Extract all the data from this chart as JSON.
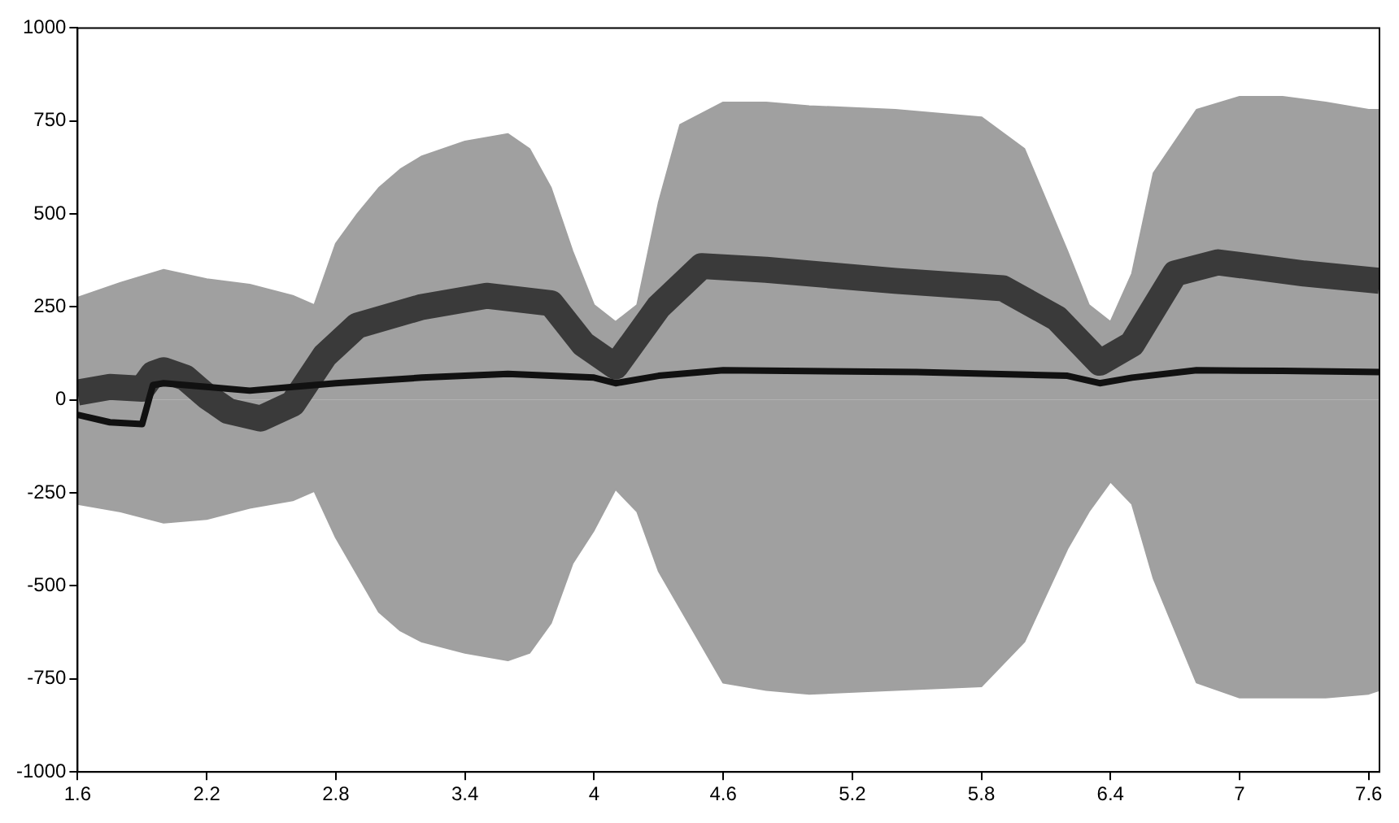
{
  "chart_data": {
    "type": "line",
    "xlim": [
      1.6,
      7.65
    ],
    "xticks": [
      1.6,
      2.2,
      2.8,
      3.4,
      4,
      4.6,
      5.2,
      5.8,
      6.4,
      7,
      7.6
    ],
    "ylim": [
      -1000,
      1000
    ],
    "yticks": [
      -1000,
      -750,
      -500,
      -250,
      0,
      250,
      500,
      750,
      1000
    ],
    "grid": false,
    "legend": false,
    "marker": "none",
    "series": [
      {
        "type": "area",
        "color": "#a0a0a0",
        "x": [
          1.6,
          1.8,
          2.0,
          2.2,
          2.4,
          2.6,
          2.7,
          2.8,
          2.9,
          3.0,
          3.1,
          3.2,
          3.4,
          3.6,
          3.7,
          3.8,
          3.9,
          4.0,
          4.1,
          4.2,
          4.3,
          4.4,
          4.6,
          4.8,
          5.0,
          5.4,
          5.8,
          6.0,
          6.2,
          6.3,
          6.4,
          6.5,
          6.6,
          6.8,
          7.0,
          7.2,
          7.4,
          7.6,
          7.65
        ],
        "values": [
          275,
          315,
          350,
          325,
          310,
          280,
          255,
          420,
          500,
          570,
          620,
          655,
          695,
          715,
          675,
          570,
          400,
          255,
          210,
          255,
          530,
          740,
          800,
          800,
          790,
          780,
          760,
          675,
          400,
          255,
          210,
          340,
          610,
          780,
          815,
          815,
          800,
          780,
          780
        ]
      },
      {
        "type": "area",
        "color": "#a0a0a0",
        "x": [
          1.6,
          1.8,
          2.0,
          2.2,
          2.4,
          2.6,
          2.7,
          2.8,
          2.9,
          3.0,
          3.1,
          3.2,
          3.4,
          3.6,
          3.7,
          3.8,
          3.9,
          4.0,
          4.1,
          4.2,
          4.3,
          4.4,
          4.6,
          4.8,
          5.0,
          5.4,
          5.8,
          6.0,
          6.2,
          6.3,
          6.4,
          6.5,
          6.6,
          6.8,
          7.0,
          7.2,
          7.4,
          7.6,
          7.65
        ],
        "values": [
          -280,
          -300,
          -330,
          -320,
          -290,
          -270,
          -245,
          -370,
          -470,
          -570,
          -620,
          -650,
          -680,
          -700,
          -680,
          -600,
          -440,
          -350,
          -240,
          -300,
          -460,
          -560,
          -760,
          -780,
          -790,
          -780,
          -770,
          -650,
          -400,
          -300,
          -220,
          -280,
          -480,
          -760,
          -800,
          -800,
          -800,
          -790,
          -780
        ]
      },
      {
        "color": "#3a3a3a",
        "x": [
          1.6,
          1.75,
          1.9,
          1.95,
          2.0,
          2.1,
          2.2,
          2.3,
          2.45,
          2.6,
          2.75,
          2.9,
          3.2,
          3.5,
          3.8,
          3.95,
          4.1,
          4.3,
          4.5,
          4.8,
          5.4,
          5.9,
          6.15,
          6.35,
          6.5,
          6.7,
          6.9,
          7.3,
          7.65
        ],
        "values": [
          20,
          35,
          30,
          70,
          80,
          60,
          10,
          -30,
          -50,
          -10,
          120,
          200,
          250,
          280,
          260,
          150,
          90,
          250,
          360,
          350,
          320,
          300,
          220,
          100,
          150,
          340,
          370,
          340,
          320
        ]
      },
      {
        "color": "#111111",
        "x": [
          1.6,
          1.75,
          1.9,
          1.95,
          2.0,
          2.2,
          2.4,
          2.6,
          2.8,
          3.2,
          3.6,
          4.0,
          4.1,
          4.3,
          4.6,
          5.5,
          6.2,
          6.35,
          6.5,
          6.8,
          7.2,
          7.65
        ],
        "values": [
          -40,
          -60,
          -65,
          40,
          45,
          35,
          25,
          35,
          45,
          60,
          70,
          60,
          45,
          65,
          80,
          75,
          65,
          45,
          60,
          80,
          78,
          75
        ]
      }
    ]
  }
}
